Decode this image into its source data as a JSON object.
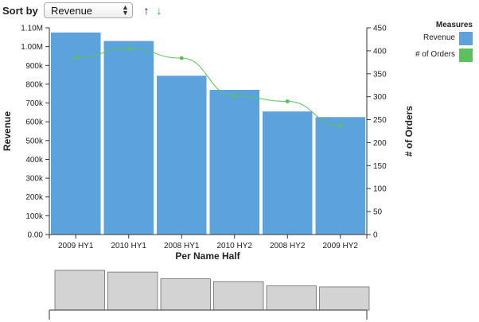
{
  "toolbar": {
    "sort_label": "Sort by",
    "sort_value": "Revenue",
    "sort_options": [
      "Revenue"
    ],
    "ascending_icon": "arrow-up-icon",
    "descending_icon": "arrow-down-icon",
    "ascending_color": "#111111",
    "descending_color": "#22aa22"
  },
  "legend": {
    "title": "Measures",
    "items": [
      {
        "label": "Revenue",
        "color": "#5ca3dd"
      },
      {
        "label": "# of Orders",
        "color": "#5cc05c"
      }
    ]
  },
  "chart_data": {
    "type": "bar",
    "title": "",
    "xlabel": "Per Name Half",
    "ylabel": "Revenue",
    "y2label": "# of Orders",
    "categories": [
      "2009 HY1",
      "2010 HY1",
      "2008 HY1",
      "2010 HY2",
      "2008 HY2",
      "2009 HY2"
    ],
    "series": [
      {
        "name": "Revenue",
        "type": "bar",
        "axis": "left",
        "color": "#5ca3dd",
        "values": [
          1075000,
          1030000,
          845000,
          770000,
          655000,
          625000
        ]
      },
      {
        "name": "# of Orders",
        "type": "line",
        "axis": "right",
        "color": "#5cc05c",
        "values": [
          385,
          405,
          384,
          302,
          290,
          237
        ]
      }
    ],
    "ylim": [
      0,
      1100000
    ],
    "y_ticks": [
      0,
      100000,
      200000,
      300000,
      400000,
      500000,
      600000,
      700000,
      800000,
      900000,
      1000000,
      1100000
    ],
    "y_tick_labels": [
      "0.00",
      "100k",
      "200k",
      "300k",
      "400k",
      "500k",
      "600k",
      "700k",
      "800k",
      "900k",
      "1.00M",
      "1.10M"
    ],
    "y2lim": [
      0,
      450
    ],
    "y2_ticks": [
      0,
      50,
      100,
      150,
      200,
      250,
      300,
      350,
      400,
      450
    ],
    "y2_tick_labels": [
      "0",
      "50",
      "100",
      "150",
      "200",
      "250",
      "300",
      "350",
      "400",
      "450"
    ],
    "grid": false,
    "legend_position": "top-right",
    "overview_color": "#d3d3d3"
  }
}
